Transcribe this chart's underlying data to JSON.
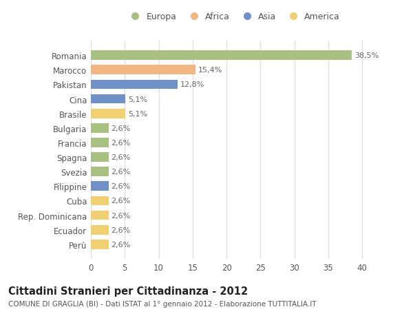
{
  "categories": [
    "Romania",
    "Marocco",
    "Pakistan",
    "Cina",
    "Brasile",
    "Bulgaria",
    "Francia",
    "Spagna",
    "Svezia",
    "Filippine",
    "Cuba",
    "Rep. Dominicana",
    "Ecuador",
    "Perù"
  ],
  "values": [
    38.5,
    15.4,
    12.8,
    5.1,
    5.1,
    2.6,
    2.6,
    2.6,
    2.6,
    2.6,
    2.6,
    2.6,
    2.6,
    2.6
  ],
  "colors": [
    "#a8c080",
    "#f0b880",
    "#7090c8",
    "#7090c8",
    "#f0d070",
    "#a8c080",
    "#a8c080",
    "#a8c080",
    "#a8c080",
    "#7090c8",
    "#f0d070",
    "#f0d070",
    "#f0d070",
    "#f0d070"
  ],
  "labels": [
    "38,5%",
    "15,4%",
    "12,8%",
    "5,1%",
    "5,1%",
    "2,6%",
    "2,6%",
    "2,6%",
    "2,6%",
    "2,6%",
    "2,6%",
    "2,6%",
    "2,6%",
    "2,6%"
  ],
  "legend_labels": [
    "Europa",
    "Africa",
    "Asia",
    "America"
  ],
  "legend_colors": [
    "#a8c080",
    "#f0b880",
    "#7090c8",
    "#f0d070"
  ],
  "xlim": [
    0,
    42
  ],
  "xticks": [
    0,
    5,
    10,
    15,
    20,
    25,
    30,
    35,
    40
  ],
  "title": "Cittadini Stranieri per Cittadinanza - 2012",
  "subtitle": "COMUNE DI GRAGLIA (BI) - Dati ISTAT al 1° gennaio 2012 - Elaborazione TUTTITALIA.IT",
  "fig_background": "#ffffff",
  "plot_background": "#ffffff",
  "grid_color": "#e0e0e0",
  "bar_height": 0.65,
  "label_fontsize": 8.0,
  "tick_fontsize": 8.5,
  "title_fontsize": 10.5,
  "subtitle_fontsize": 7.5
}
